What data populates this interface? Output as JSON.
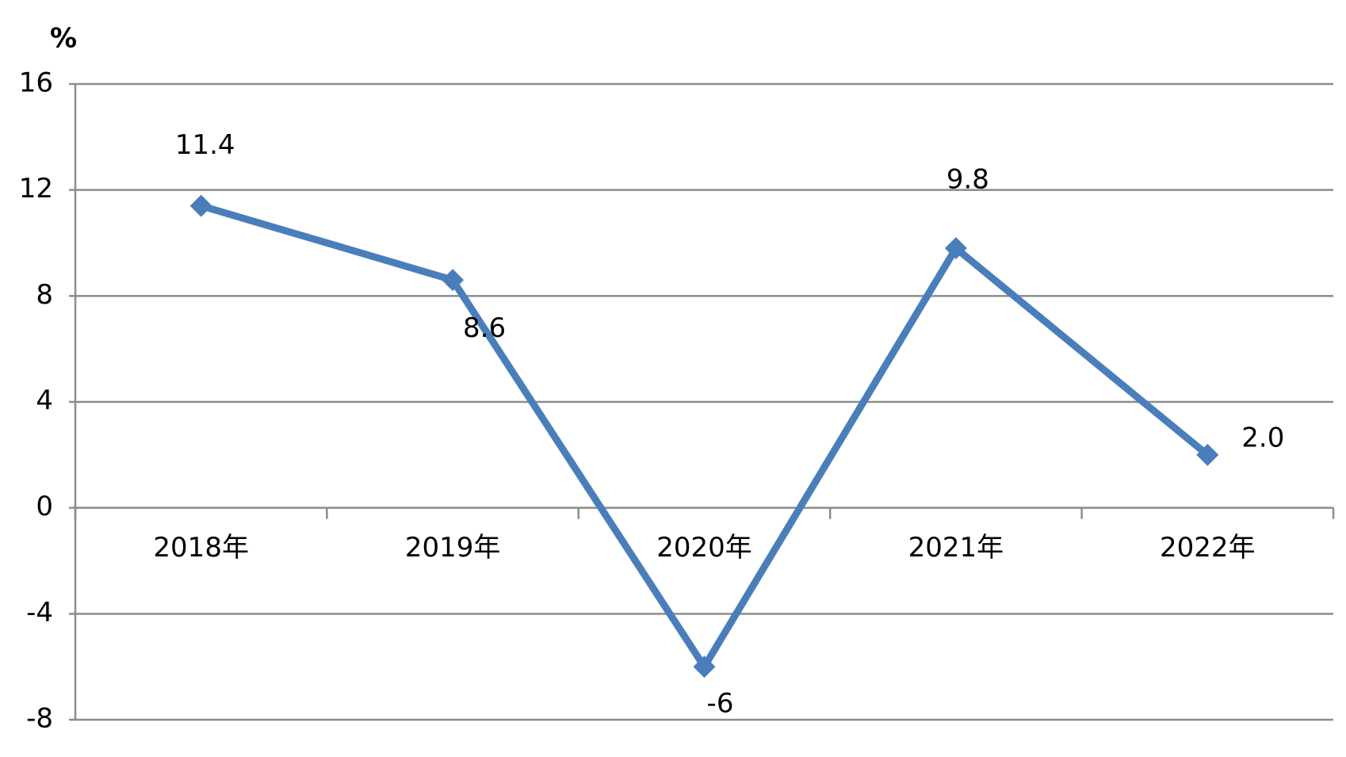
{
  "chart_data": {
    "type": "line",
    "y_label": "%",
    "categories": [
      "2018年",
      "2019年",
      "2020年",
      "2021年",
      "2022年"
    ],
    "values": [
      11.4,
      8.6,
      -6,
      9.8,
      2.0
    ],
    "value_labels": [
      "11.4",
      "8.6",
      "-6",
      "9.8",
      "2.0"
    ],
    "color": "#4a7ebb",
    "ylim": [
      -8,
      16
    ],
    "yticks": [
      -8,
      -4,
      0,
      4,
      8,
      12,
      16
    ],
    "grid": true
  }
}
